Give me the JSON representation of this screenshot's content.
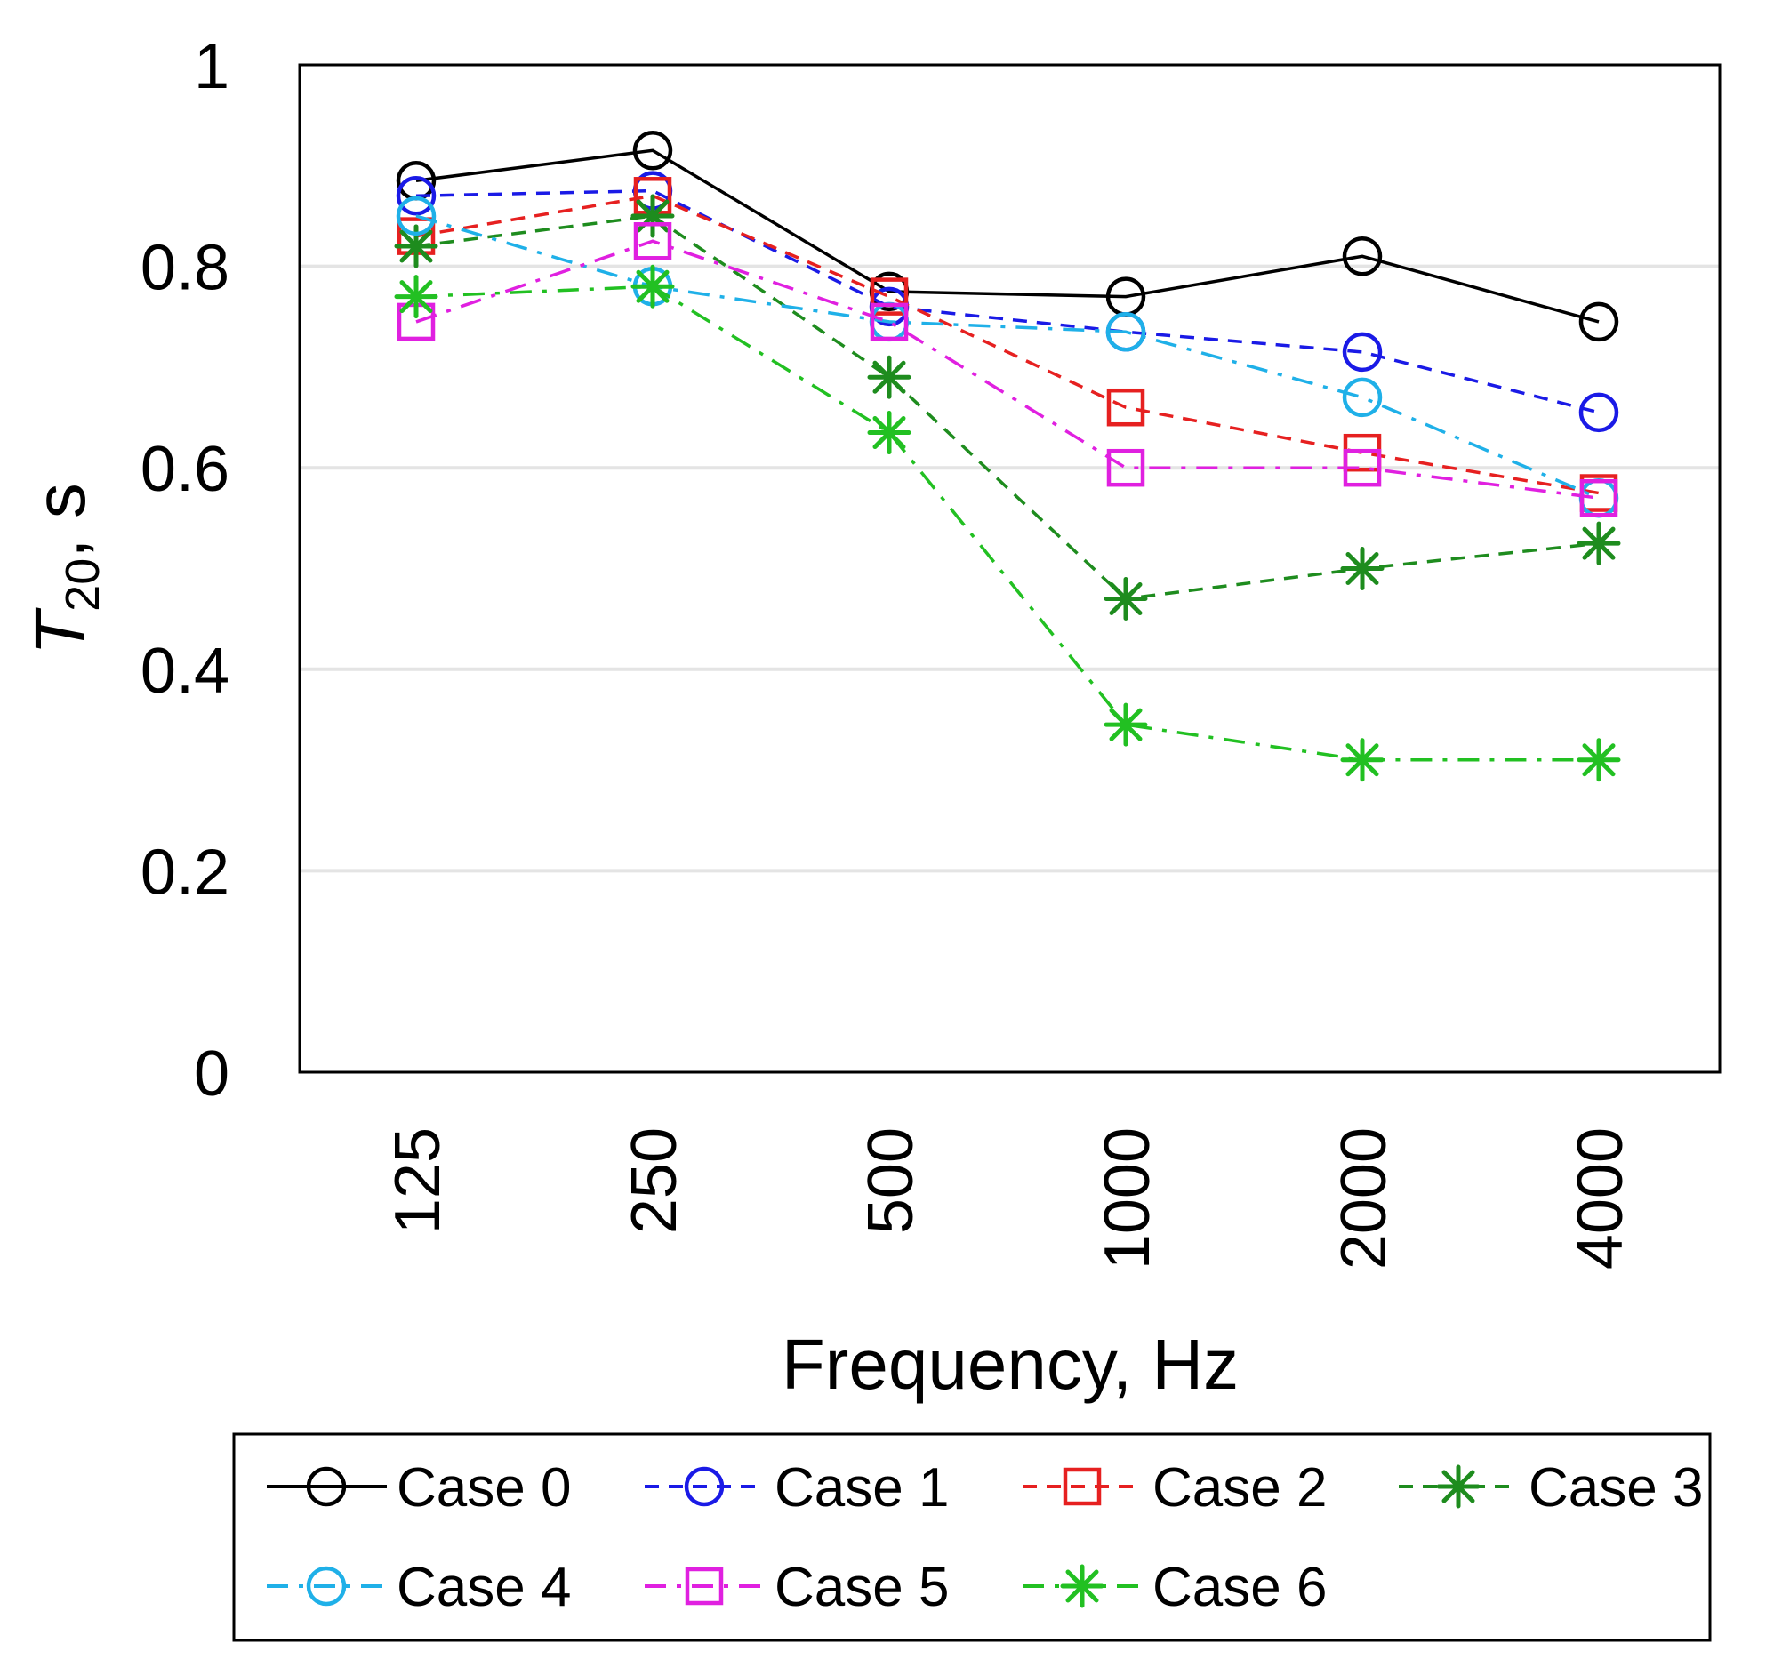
{
  "chart_data": {
    "type": "line",
    "title": "",
    "xlabel": "Frequency, Hz",
    "ylabel": {
      "main": "T",
      "sub": "20",
      "suffix": ", s"
    },
    "categories": [
      "125",
      "250",
      "500",
      "1000",
      "2000",
      "4000"
    ],
    "ylim": [
      0,
      1
    ],
    "yticks": [
      "0",
      "0.2",
      "0.4",
      "0.6",
      "0.8",
      "1"
    ],
    "grid": "horizontal",
    "legend_position": "bottom",
    "series": [
      {
        "name": "Case 0",
        "color": "#000000",
        "dash": "solid",
        "marker": "circle",
        "values": [
          0.885,
          0.915,
          0.775,
          0.77,
          0.81,
          0.745
        ]
      },
      {
        "name": "Case 1",
        "color": "#1a1ae6",
        "dash": "dash",
        "marker": "circle",
        "values": [
          0.87,
          0.875,
          0.76,
          0.735,
          0.715,
          0.655
        ]
      },
      {
        "name": "Case 2",
        "color": "#e62020",
        "dash": "dash",
        "marker": "square",
        "values": [
          0.83,
          0.87,
          0.77,
          0.66,
          0.615,
          0.575
        ]
      },
      {
        "name": "Case 3",
        "color": "#1e8c1e",
        "dash": "dash",
        "marker": "asterisk",
        "values": [
          0.82,
          0.85,
          0.69,
          0.47,
          0.5,
          0.525
        ]
      },
      {
        "name": "Case 4",
        "color": "#1fb0e8",
        "dash": "dashdot",
        "marker": "circle",
        "values": [
          0.85,
          0.78,
          0.745,
          0.735,
          0.67,
          0.57
        ]
      },
      {
        "name": "Case 5",
        "color": "#e020e0",
        "dash": "dashdot",
        "marker": "square",
        "values": [
          0.745,
          0.825,
          0.745,
          0.6,
          0.6,
          0.57
        ]
      },
      {
        "name": "Case 6",
        "color": "#22c022",
        "dash": "dashdot",
        "marker": "asterisk",
        "values": [
          0.77,
          0.78,
          0.635,
          0.345,
          0.31,
          0.31
        ]
      }
    ]
  }
}
